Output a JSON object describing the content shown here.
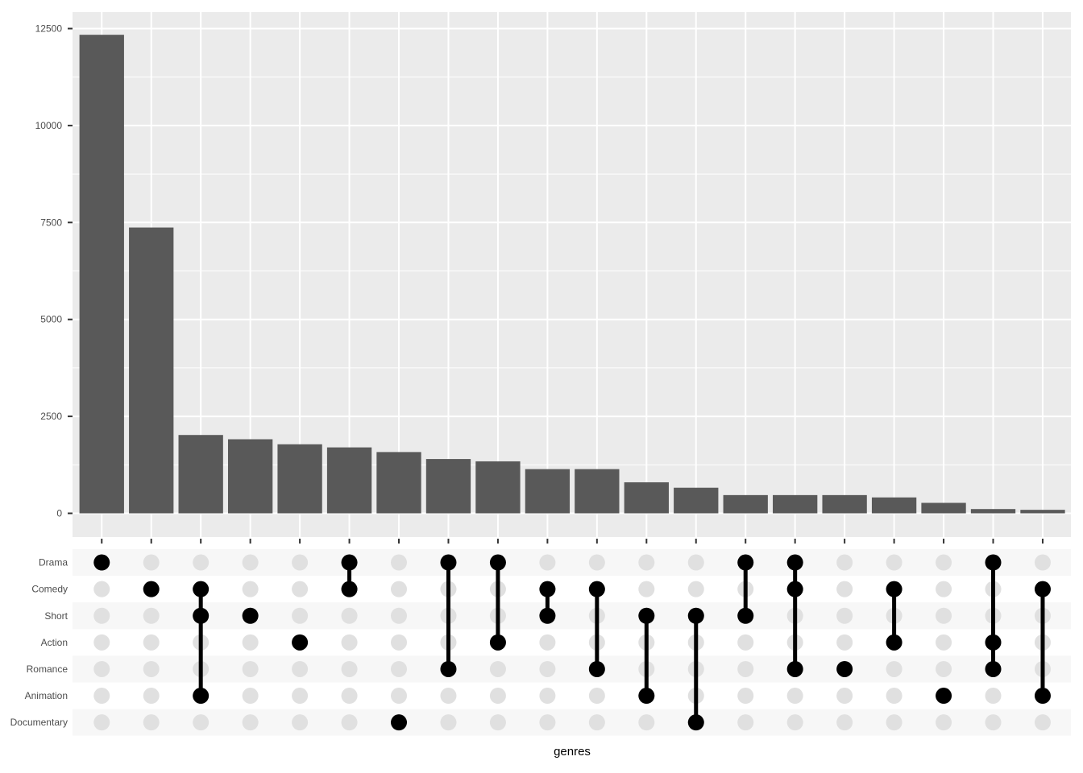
{
  "chart_data": {
    "type": "bar",
    "subtype": "upset",
    "xlabel": "genres",
    "ylabel": "",
    "ylim": [
      0,
      12900
    ],
    "yticks": [
      0,
      2500,
      5000,
      7500,
      10000,
      12500
    ],
    "ytick_labels": [
      "0",
      "2500",
      "5000",
      "7500",
      "10000",
      "12500"
    ],
    "sets": [
      "Drama",
      "Comedy",
      "Short",
      "Action",
      "Romance",
      "Animation",
      "Documentary"
    ],
    "intersections": [
      {
        "members": [
          "Drama"
        ],
        "value": 12340
      },
      {
        "members": [
          "Comedy"
        ],
        "value": 7370
      },
      {
        "members": [
          "Comedy",
          "Short",
          "Animation"
        ],
        "value": 2020
      },
      {
        "members": [
          "Short"
        ],
        "value": 1910
      },
      {
        "members": [
          "Action"
        ],
        "value": 1780
      },
      {
        "members": [
          "Drama",
          "Comedy"
        ],
        "value": 1700
      },
      {
        "members": [
          "Documentary"
        ],
        "value": 1580
      },
      {
        "members": [
          "Drama",
          "Romance"
        ],
        "value": 1400
      },
      {
        "members": [
          "Drama",
          "Action"
        ],
        "value": 1340
      },
      {
        "members": [
          "Comedy",
          "Short"
        ],
        "value": 1140
      },
      {
        "members": [
          "Comedy",
          "Romance"
        ],
        "value": 1140
      },
      {
        "members": [
          "Short",
          "Animation"
        ],
        "value": 800
      },
      {
        "members": [
          "Short",
          "Documentary"
        ],
        "value": 660
      },
      {
        "members": [
          "Drama",
          "Short"
        ],
        "value": 470
      },
      {
        "members": [
          "Drama",
          "Comedy",
          "Romance"
        ],
        "value": 470
      },
      {
        "members": [
          "Romance"
        ],
        "value": 470
      },
      {
        "members": [
          "Comedy",
          "Action"
        ],
        "value": 410
      },
      {
        "members": [
          "Animation"
        ],
        "value": 270
      },
      {
        "members": [
          "Drama",
          "Action",
          "Romance"
        ],
        "value": 110
      },
      {
        "members": [
          "Comedy",
          "Animation"
        ],
        "value": 90
      }
    ],
    "grid": true,
    "legend": "none"
  },
  "colors": {
    "panel_background": "#ebebeb",
    "gridline": "#ffffff",
    "bar": "#595959",
    "dot_active": "#000000",
    "dot_inactive": "#e0e0e0",
    "matrix_stripe": "#f7f7f7",
    "axis_text": "#4d4d4d",
    "tick_mark": "#333333"
  }
}
